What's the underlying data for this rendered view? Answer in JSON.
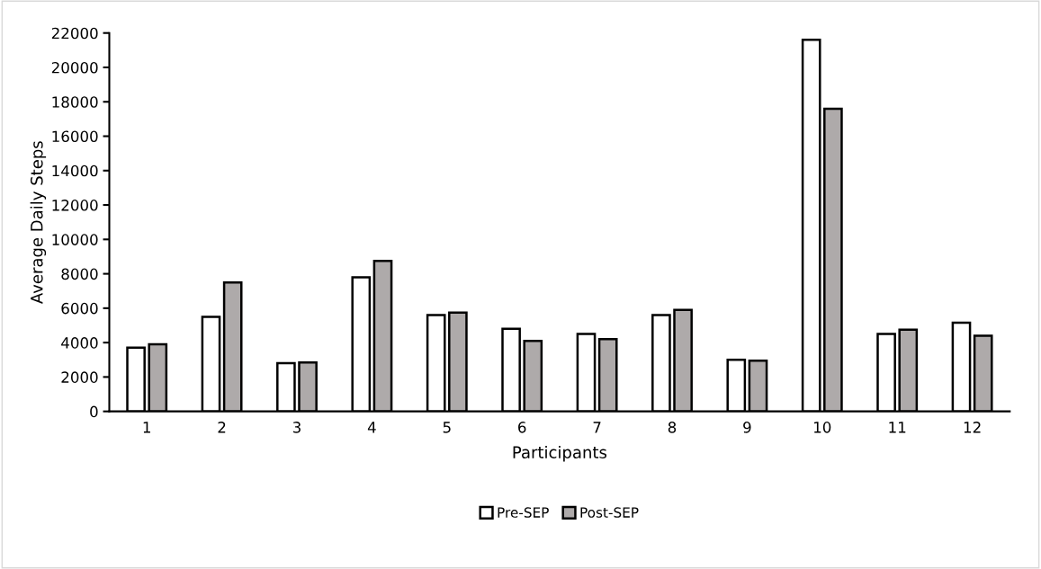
{
  "chart_data": {
    "type": "bar",
    "xlabel": "Participants",
    "ylabel": "Average Daily Steps",
    "categories": [
      "1",
      "2",
      "3",
      "4",
      "5",
      "6",
      "7",
      "8",
      "9",
      "10",
      "11",
      "12"
    ],
    "series": [
      {
        "name": "Pre-SEP",
        "color": "#ffffff",
        "values": [
          3700,
          5500,
          2800,
          7800,
          5600,
          4800,
          4500,
          5600,
          3000,
          21600,
          4500,
          5150
        ]
      },
      {
        "name": "Post-SEP",
        "color": "#aeaaaa",
        "values": [
          3900,
          7500,
          2850,
          8750,
          5750,
          4100,
          4200,
          5900,
          2950,
          17600,
          4750,
          4400
        ]
      }
    ],
    "ylim": [
      0,
      22000
    ],
    "yticks": [
      0,
      2000,
      4000,
      6000,
      8000,
      10000,
      12000,
      14000,
      16000,
      18000,
      20000,
      22000
    ],
    "grid": false,
    "legend": "bottom"
  }
}
